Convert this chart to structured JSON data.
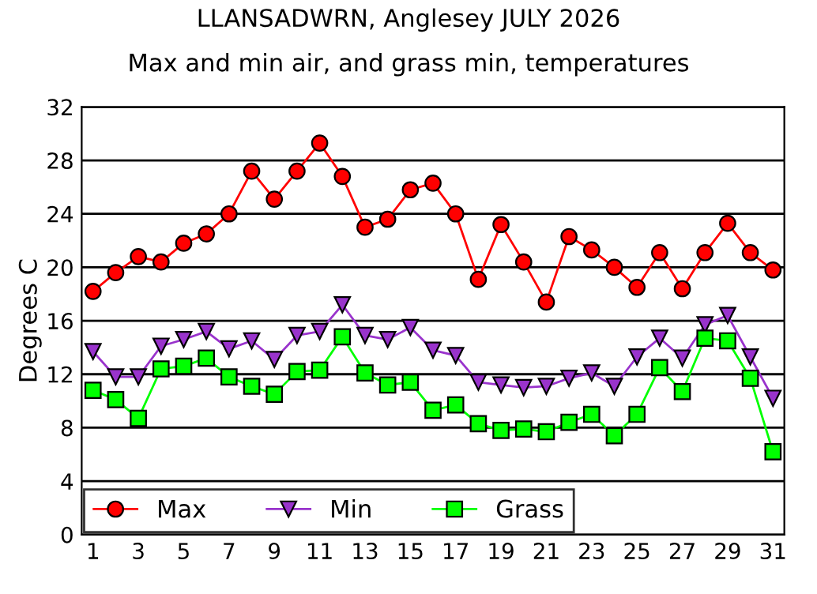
{
  "chart_data": {
    "type": "line",
    "title": "LLANSADWRN, Anglesey JULY 2026",
    "subtitle": "Max and min air, and grass min, temperatures",
    "ylabel": "Degrees C",
    "x": [
      1,
      2,
      3,
      4,
      5,
      6,
      7,
      8,
      9,
      10,
      11,
      12,
      13,
      14,
      15,
      16,
      17,
      18,
      19,
      20,
      21,
      22,
      23,
      24,
      25,
      26,
      27,
      28,
      29,
      30,
      31
    ],
    "series": [
      {
        "name": "Max",
        "color": "#ff0000",
        "marker": "circle",
        "values": [
          18.2,
          19.6,
          20.8,
          20.4,
          21.8,
          22.5,
          24.0,
          27.2,
          25.1,
          27.2,
          29.3,
          26.8,
          23.0,
          23.6,
          25.8,
          26.3,
          24.0,
          19.1,
          23.2,
          20.4,
          17.4,
          22.3,
          21.3,
          20.0,
          18.5,
          21.1,
          18.4,
          21.1,
          23.3,
          21.1,
          19.8
        ]
      },
      {
        "name": "Min",
        "color": "#9933cc",
        "marker": "triangle",
        "values": [
          13.7,
          11.8,
          11.8,
          14.1,
          14.6,
          15.2,
          13.9,
          14.5,
          13.1,
          14.9,
          15.2,
          17.2,
          14.9,
          14.6,
          15.5,
          13.8,
          13.4,
          11.4,
          11.2,
          11.0,
          11.1,
          11.7,
          12.1,
          11.1,
          13.3,
          14.7,
          13.2,
          15.7,
          16.4,
          13.3,
          10.2
        ]
      },
      {
        "name": "Grass",
        "color": "#00ff00",
        "marker": "square",
        "values": [
          10.8,
          10.1,
          8.7,
          12.4,
          12.6,
          13.2,
          11.8,
          11.1,
          10.5,
          12.2,
          12.3,
          14.8,
          12.1,
          11.2,
          11.4,
          9.3,
          9.7,
          8.3,
          7.8,
          7.9,
          7.7,
          8.4,
          9.0,
          7.4,
          9.0,
          12.5,
          10.7,
          14.7,
          14.5,
          11.7,
          6.2
        ]
      }
    ],
    "xlim": [
      0.5,
      31.5
    ],
    "xticks": [
      1,
      3,
      5,
      7,
      9,
      11,
      13,
      15,
      17,
      19,
      21,
      23,
      25,
      27,
      29,
      31
    ],
    "ylim": [
      0,
      32
    ],
    "yticks": [
      0,
      4,
      8,
      12,
      16,
      20,
      24,
      28,
      32
    ],
    "grid": "y",
    "legend": "bottom left"
  }
}
